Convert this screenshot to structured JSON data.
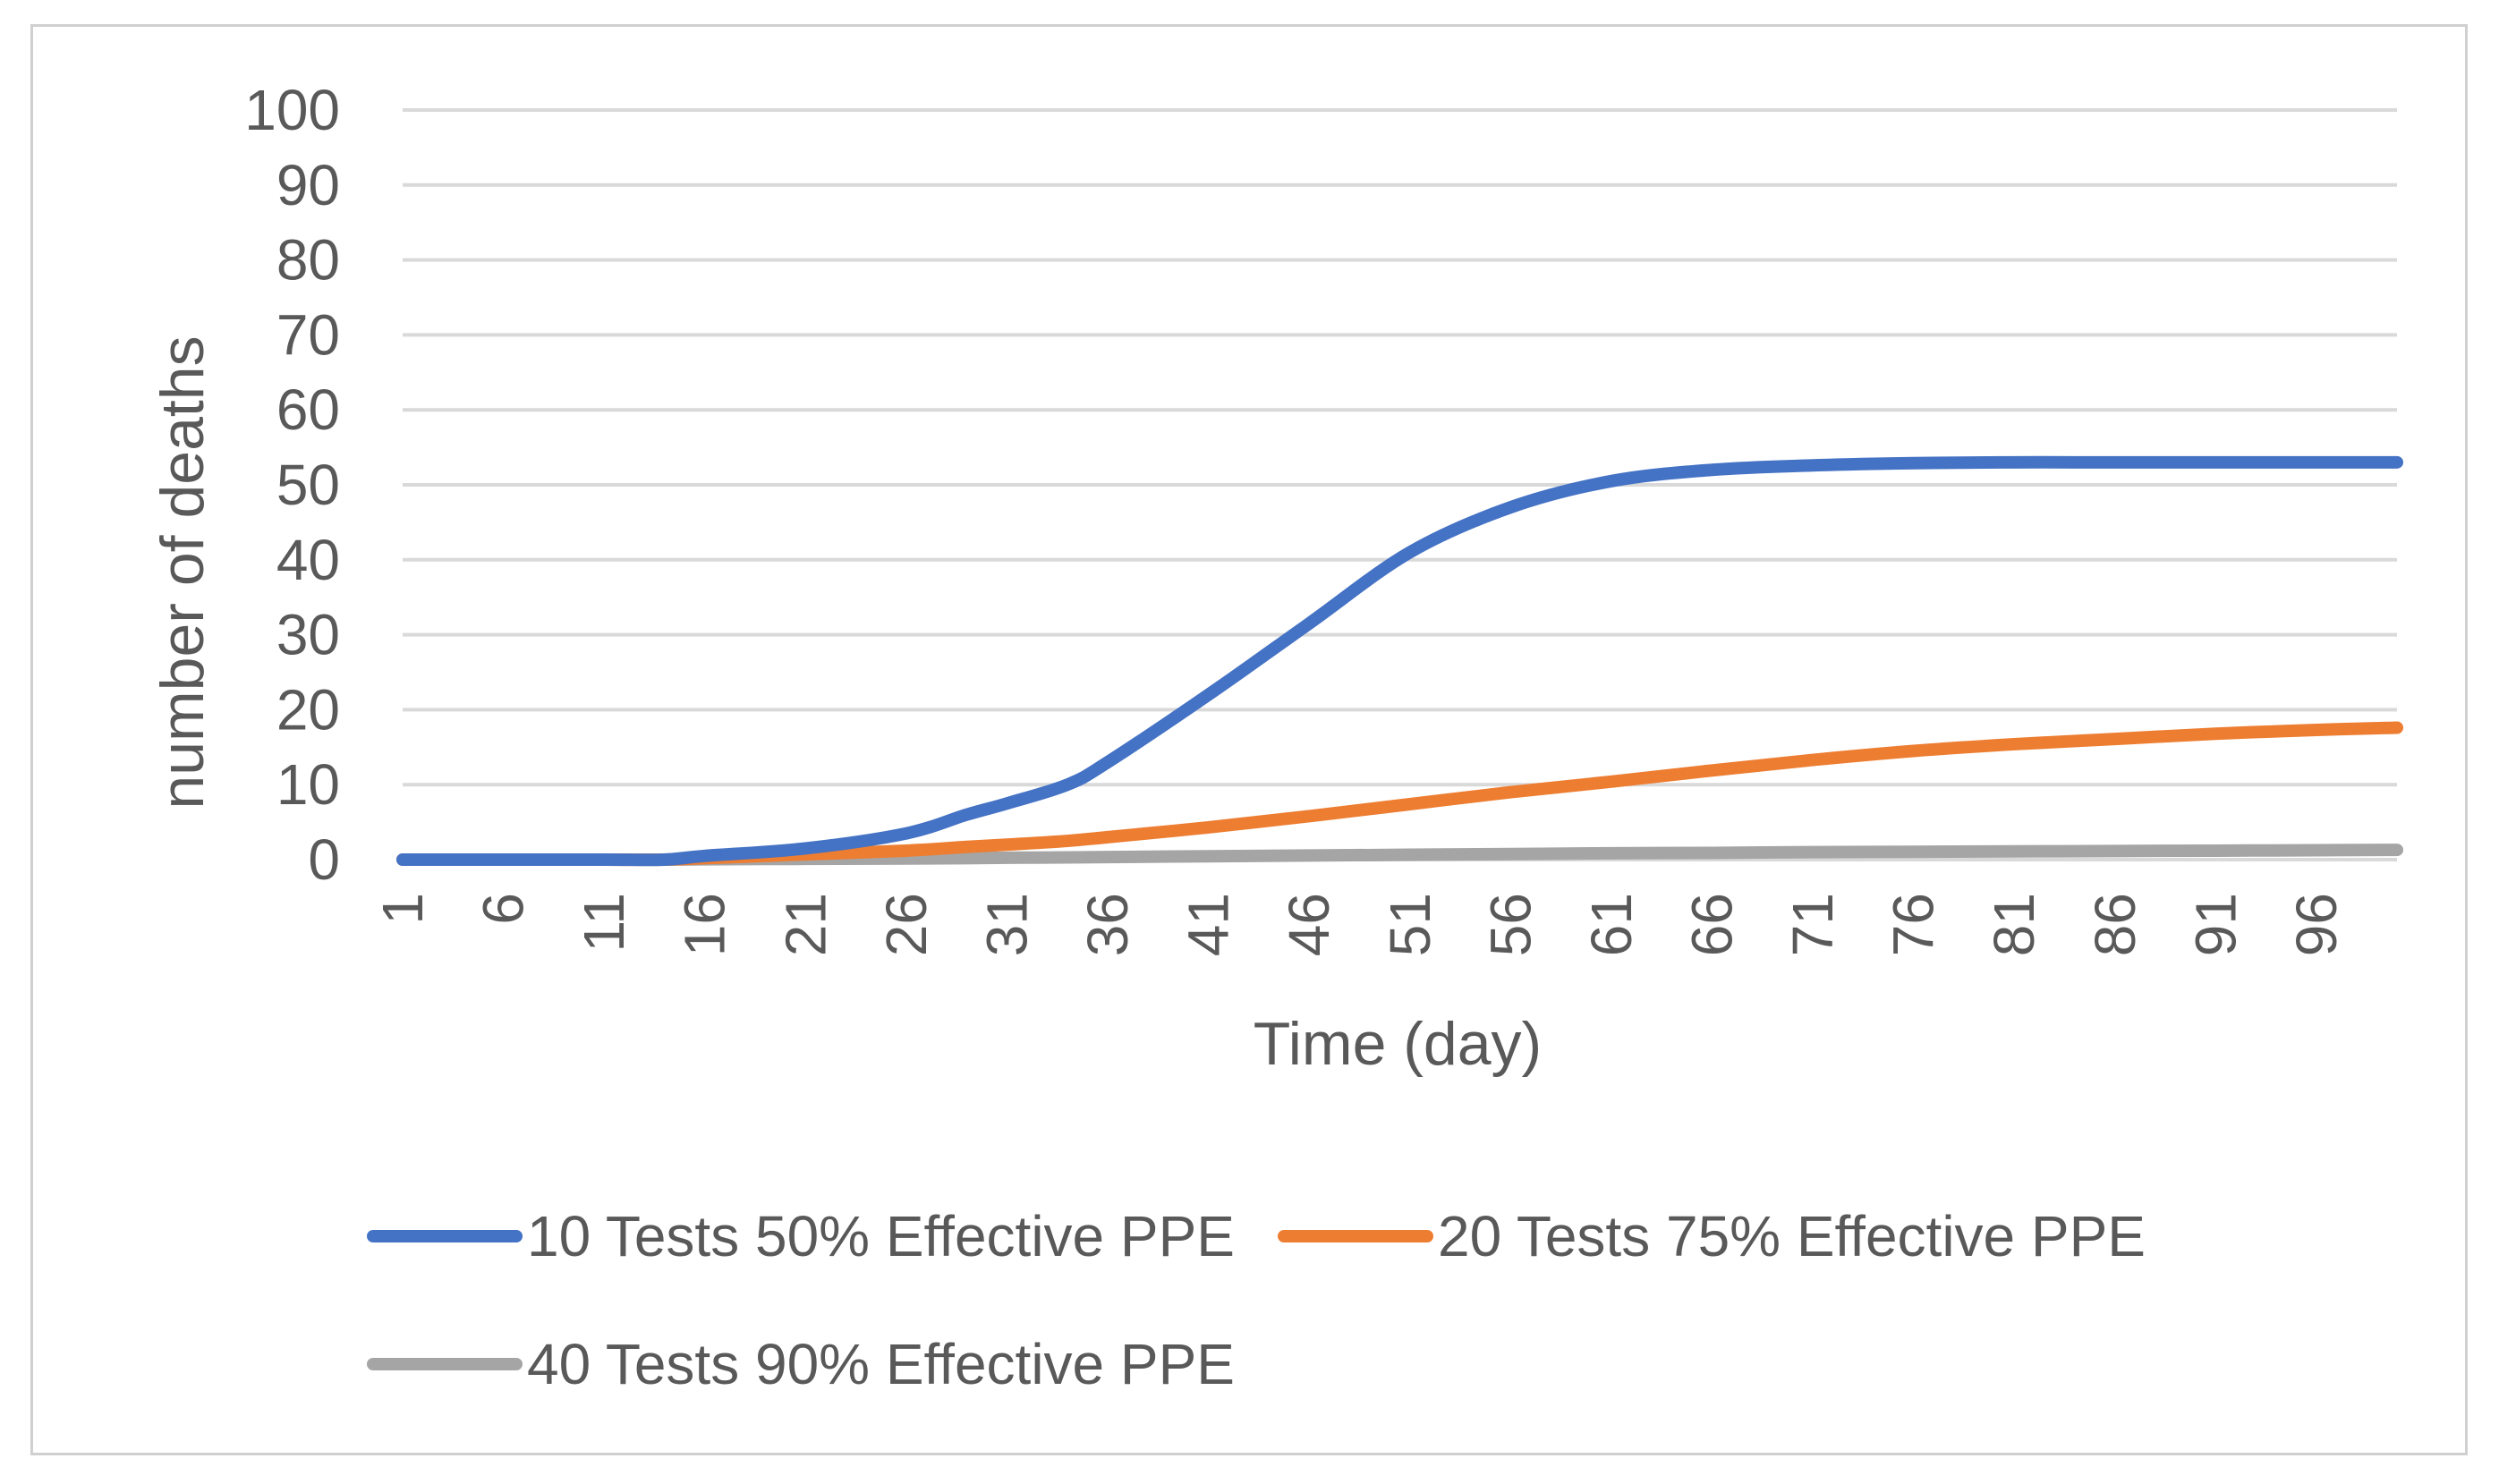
{
  "chart_data": {
    "type": "line",
    "title": "",
    "xlabel": "Time (day)",
    "ylabel": "number of deaths",
    "ylim": [
      0,
      100
    ],
    "yticks": [
      0,
      10,
      20,
      30,
      40,
      50,
      60,
      70,
      80,
      90,
      100
    ],
    "xlim": [
      1,
      100
    ],
    "xtick_labels": [
      "1",
      "6",
      "11",
      "16",
      "21",
      "26",
      "31",
      "36",
      "41",
      "46",
      "51",
      "56",
      "61",
      "66",
      "71",
      "76",
      "81",
      "86",
      "91",
      "96"
    ],
    "grid": true,
    "legend_position": "bottom",
    "x": [
      1,
      6,
      11,
      14,
      16,
      21,
      26,
      29,
      31,
      34,
      36,
      41,
      46,
      51,
      56,
      61,
      66,
      71,
      76,
      81,
      86,
      91,
      96,
      100
    ],
    "series": [
      {
        "name": "10 Tests 50% Effective PPE",
        "color": "#4472C4",
        "values": [
          0,
          0,
          0,
          0,
          0.5,
          1.5,
          3.5,
          6,
          7.5,
          10,
          13,
          22,
          31.5,
          41,
          47,
          50.5,
          52,
          52.6,
          52.9,
          53,
          53,
          53,
          53,
          53
        ]
      },
      {
        "name": "20 Tests 75% Effective PPE",
        "color": "#ED7D31",
        "values": [
          0,
          0,
          0,
          0,
          0.2,
          0.7,
          1.2,
          1.7,
          2,
          2.5,
          3,
          4.3,
          5.8,
          7.4,
          9,
          10.4,
          11.9,
          13.3,
          14.5,
          15.4,
          16.1,
          16.8,
          17.3,
          17.6
        ]
      },
      {
        "name": "40 Tests 90% Effective PPE",
        "color": "#A5A5A5",
        "values": [
          0,
          0,
          0,
          0,
          0.05,
          0.1,
          0.15,
          0.2,
          0.25,
          0.3,
          0.35,
          0.45,
          0.55,
          0.65,
          0.75,
          0.85,
          0.9,
          1,
          1.05,
          1.1,
          1.15,
          1.2,
          1.25,
          1.3
        ]
      }
    ]
  }
}
